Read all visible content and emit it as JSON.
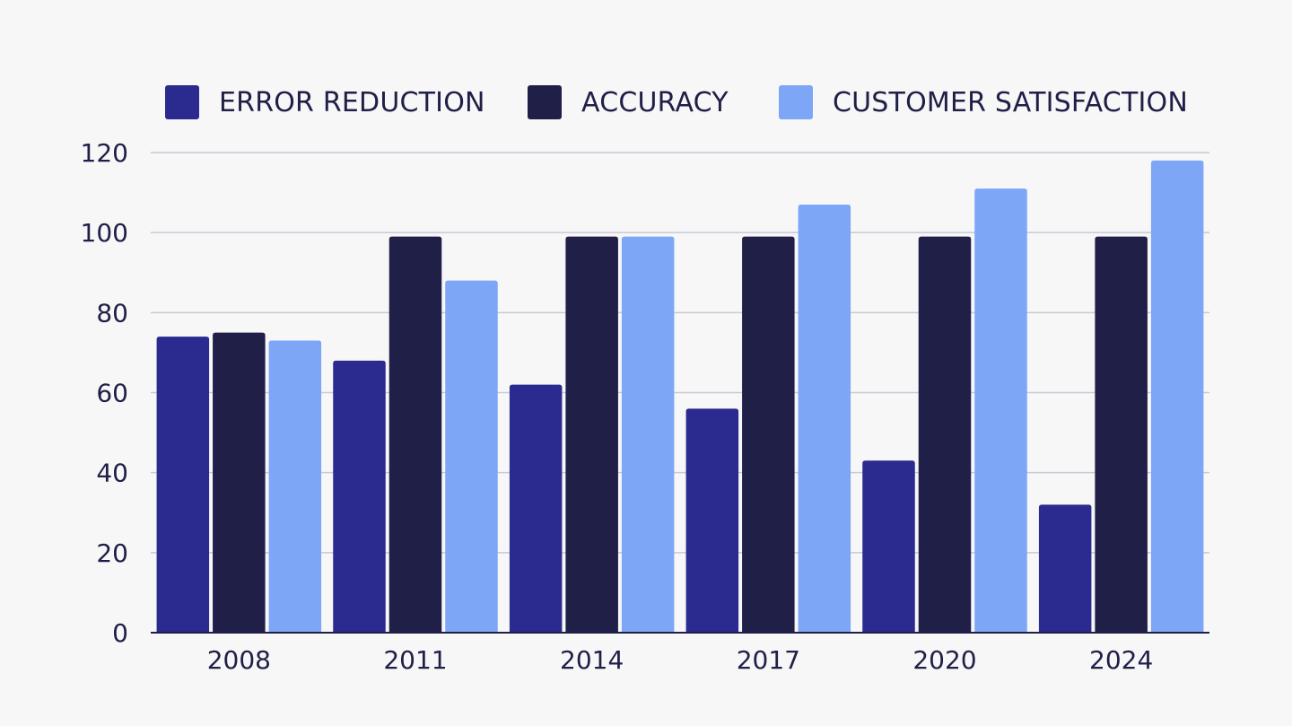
{
  "chart_data": {
    "type": "bar",
    "title": "",
    "xlabel": "",
    "ylabel": "",
    "categories": [
      "2008",
      "2011",
      "2014",
      "2017",
      "2020",
      "2024"
    ],
    "series": [
      {
        "name": "ERROR REDUCTION",
        "color": "#2b2a8f",
        "values": [
          74,
          68,
          62,
          56,
          43,
          32
        ]
      },
      {
        "name": "ACCURACY",
        "color": "#201f47",
        "values": [
          75,
          99,
          99,
          99,
          99,
          99
        ]
      },
      {
        "name": "CUSTOMER SATISFACTION",
        "color": "#7ea6f7",
        "values": [
          73,
          88,
          99,
          107,
          111,
          118
        ]
      }
    ],
    "ylim": [
      0,
      120
    ],
    "yticks": [
      "0",
      "20",
      "40",
      "60",
      "80",
      "100",
      "120"
    ],
    "grid": true,
    "legend_position": "top"
  },
  "colors": {
    "background": "#f7f7f8",
    "grid": "#c9c9d6",
    "text": "#1f1f47"
  }
}
